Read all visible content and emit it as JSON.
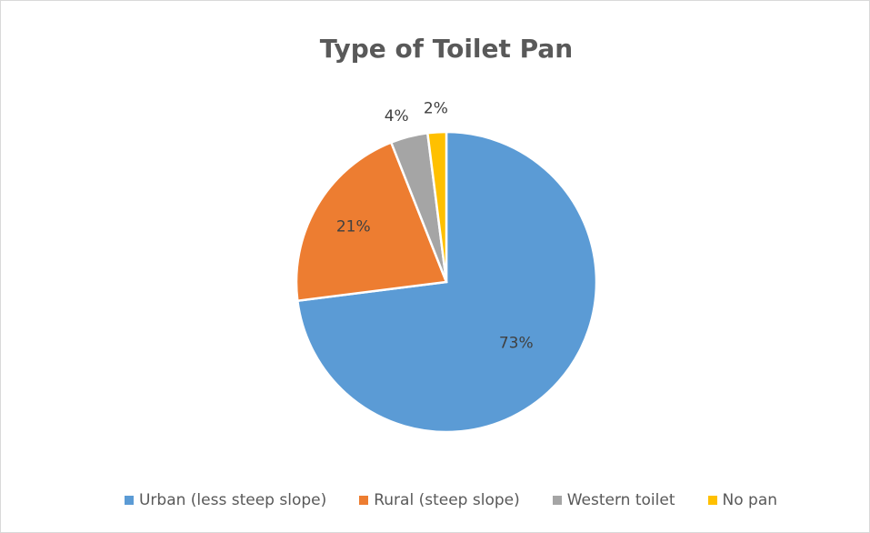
{
  "chart_data": {
    "type": "pie",
    "title": "Type of Toilet Pan",
    "legend_position": "bottom",
    "categories": [
      "Urban (less steep slope)",
      "Rural (steep slope)",
      "Western toilet",
      "No pan"
    ],
    "values": [
      73,
      21,
      4,
      2
    ],
    "labels": [
      "73%",
      "21%",
      "4%",
      "2%"
    ],
    "colors": [
      "#5b9bd5",
      "#ed7d31",
      "#a5a5a5",
      "#ffc000"
    ]
  }
}
